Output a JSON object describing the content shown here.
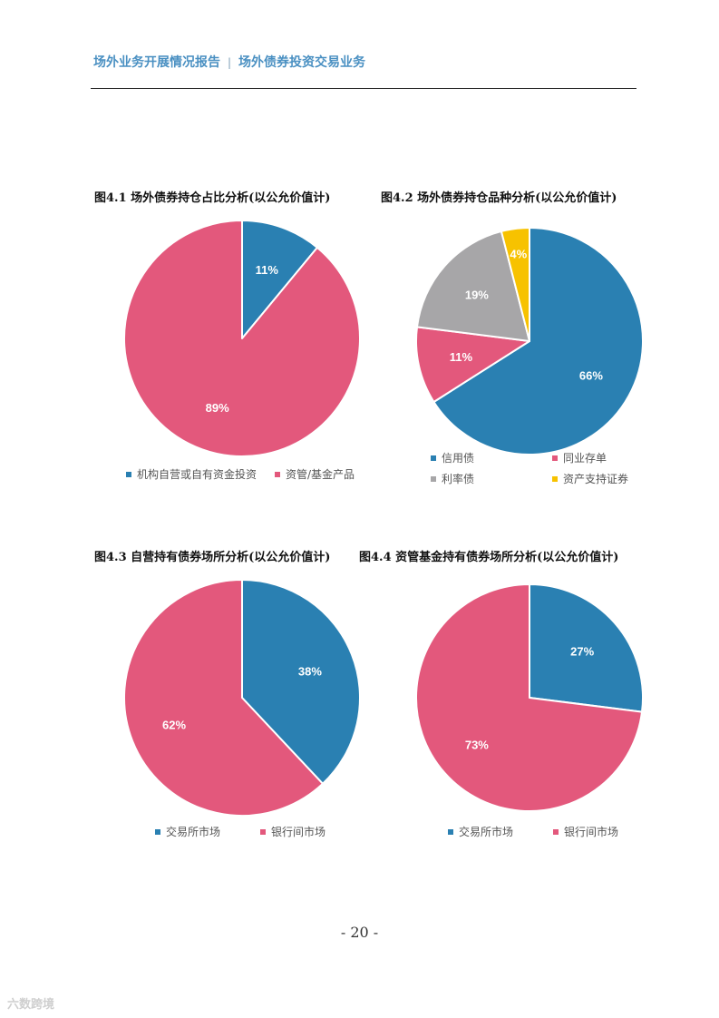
{
  "header": {
    "left": "场外业务开展情况报告",
    "sep": "|",
    "right": "场外债券投资交易业务"
  },
  "page_number": "- 20 -",
  "watermark": "六数跨境",
  "colors": {
    "blue": "#2a80b2",
    "pink": "#e3587c",
    "gray": "#a7a6a8",
    "yellow": "#f7c200"
  },
  "chart_data": [
    {
      "type": "pie",
      "title": "图4.1 场外债券持仓占比分析(以公允价值计)",
      "categories": [
        "机构自营或自有资金投资",
        "资管/基金产品"
      ],
      "values": [
        11,
        89
      ],
      "labels": [
        "11%",
        "89%"
      ],
      "colors": [
        "#2a80b2",
        "#e3587c"
      ],
      "legend": "bottom"
    },
    {
      "type": "pie",
      "title": "图4.2 场外债券持仓品种分析(以公允价值计)",
      "categories": [
        "信用债",
        "同业存单",
        "利率债",
        "资产支持证券"
      ],
      "values": [
        66,
        11,
        19,
        4
      ],
      "labels": [
        "66%",
        "11%",
        "19%",
        "4%"
      ],
      "colors": [
        "#2a80b2",
        "#e3587c",
        "#a7a6a8",
        "#f7c200"
      ],
      "legend": "bottom"
    },
    {
      "type": "pie",
      "title": "图4.3 自营持有债券场所分析(以公允价值计)",
      "categories": [
        "交易所市场",
        "银行间市场"
      ],
      "values": [
        38,
        62
      ],
      "labels": [
        "38%",
        "62%"
      ],
      "colors": [
        "#2a80b2",
        "#e3587c"
      ],
      "legend": "bottom"
    },
    {
      "type": "pie",
      "title": "图4.4 资管基金持有债券场所分析(以公允价值计)",
      "categories": [
        "交易所市场",
        "银行间市场"
      ],
      "values": [
        27,
        73
      ],
      "labels": [
        "27%",
        "73%"
      ],
      "colors": [
        "#2a80b2",
        "#e3587c"
      ],
      "legend": "bottom"
    }
  ]
}
